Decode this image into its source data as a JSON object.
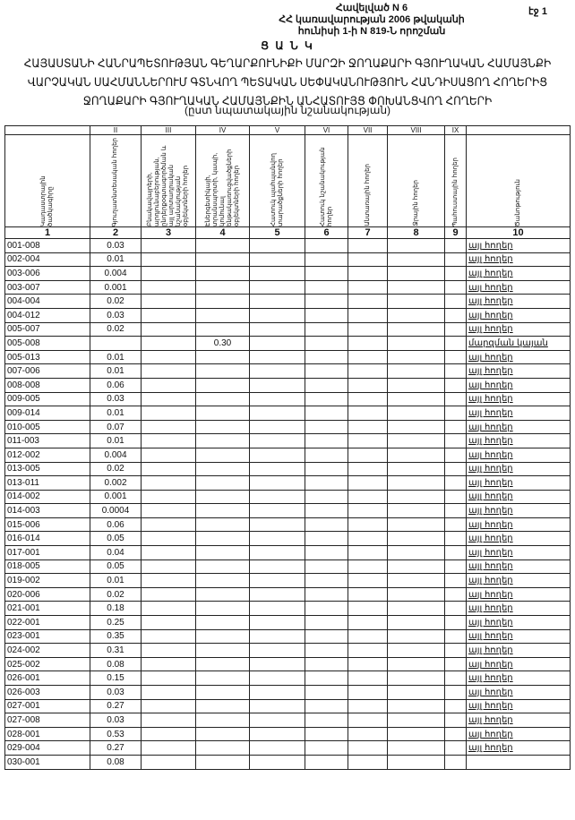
{
  "header": {
    "appendix": "Հավելված N 6",
    "line2": "ՀՀ կառավարության 2006 թվականի",
    "line3": "հունիսի 1-ի N 819-Ն որոշման",
    "page": "էջ 1"
  },
  "list_label": "Ց Ա Ն Կ",
  "title_lines": [
    "ՀԱՅԱՍՏԱՆԻ ՀԱՆՐԱՊԵՏՈՒԹՅԱՆ ԳԵՂԱՐՔՈՒՆԻՔԻ ՄԱՐԶԻ ՋՈՂԱՔԱՐԻ ԳՅՈՒՂԱԿԱՆ ՀԱՄԱՅՆՔԻ",
    "ՎԱՐՉԱԿԱՆ ՍԱՀՄԱՆՆԵՐՈՒՄ ԳՏՆՎՈՂ ՊԵՏԱԿԱՆ ՍԵՓԱԿԱՆՈՒԹՅՈՒՆ ՀԱՆԴԻՍԱՑՈՂ ՀՈՂԵՐԻՑ",
    "ՋՈՂԱՔԱՐԻ ԳՅՈՒՂԱԿԱՆ ՀԱՄԱՅՆՔԻՆ ԱՆՀԱՏՈՒՅՑ ՓՈԽԱՆՑՎՈՂ ՀՈՂԵՐԻ"
  ],
  "subtitle": "(ըստ նպատակային նշանակության)",
  "table": {
    "roman": [
      "",
      "II",
      "III",
      "IV",
      "V",
      "VI",
      "VII",
      "VIII",
      "IX",
      ""
    ],
    "headers": [
      "Կադաստրային ծածկագիրը",
      "Գյուղատնտեսական հողեր",
      "Բնակավայրերի, արդյունաբերության, ընդերքօգտագործման և այլ արտադրական նշանակության օբյեկտների հողեր",
      "Էներգետիկայի, տրանսպորտի, կապի, կոմունալ ենթակառուցվածքների օբյեկտների հողեր",
      "Հատուկ պահպանվող տարածքների հողեր",
      "Հատուկ նշանակության հողեր",
      "Անտառային հողեր",
      "Ջրային հողեր",
      "Պահուստային հողեր",
      "Ծանոթություն"
    ],
    "numbers": [
      "1",
      "2",
      "3",
      "4",
      "5",
      "6",
      "7",
      "8",
      "9",
      "10"
    ],
    "rows": [
      {
        "code": "001-008",
        "agri": "0.03",
        "col4": "",
        "note": "այլ հողեր"
      },
      {
        "code": "002-004",
        "agri": "0.01",
        "col4": "",
        "note": "այլ հողեր"
      },
      {
        "code": "003-006",
        "agri": "0.004",
        "col4": "",
        "note": "այլ հողեր"
      },
      {
        "code": "003-007",
        "agri": "0.001",
        "col4": "",
        "note": "այլ հողեր"
      },
      {
        "code": "004-004",
        "agri": "0.02",
        "col4": "",
        "note": "այլ հողեր"
      },
      {
        "code": "004-012",
        "agri": "0.03",
        "col4": "",
        "note": "այլ հողեր"
      },
      {
        "code": "005-007",
        "agri": "0.02",
        "col4": "",
        "note": "այլ հողեր"
      },
      {
        "code": "005-008",
        "agri": "",
        "col4": "0.30",
        "note": "մարզման կայան"
      },
      {
        "code": "005-013",
        "agri": "0.01",
        "col4": "",
        "note": "այլ հողեր"
      },
      {
        "code": "007-006",
        "agri": "0.01",
        "col4": "",
        "note": "այլ հողեր"
      },
      {
        "code": "008-008",
        "agri": "0.06",
        "col4": "",
        "note": "այլ հողեր"
      },
      {
        "code": "009-005",
        "agri": "0.03",
        "col4": "",
        "note": "այլ հողեր"
      },
      {
        "code": "009-014",
        "agri": "0.01",
        "col4": "",
        "note": "այլ հողեր"
      },
      {
        "code": "010-005",
        "agri": "0.07",
        "col4": "",
        "note": "այլ հողեր"
      },
      {
        "code": "011-003",
        "agri": "0.01",
        "col4": "",
        "note": "այլ հողեր"
      },
      {
        "code": "012-002",
        "agri": "0.004",
        "col4": "",
        "note": "այլ հողեր"
      },
      {
        "code": "013-005",
        "agri": "0.02",
        "col4": "",
        "note": "այլ հողեր"
      },
      {
        "code": "013-011",
        "agri": "0.002",
        "col4": "",
        "note": "այլ հողեր"
      },
      {
        "code": "014-002",
        "agri": "0.001",
        "col4": "",
        "note": "այլ հողեր"
      },
      {
        "code": "014-003",
        "agri": "0.0004",
        "col4": "",
        "note": "այլ հողեր"
      },
      {
        "code": "015-006",
        "agri": "0.06",
        "col4": "",
        "note": "այլ հողեր"
      },
      {
        "code": "016-014",
        "agri": "0.05",
        "col4": "",
        "note": "այլ հողեր"
      },
      {
        "code": "017-001",
        "agri": "0.04",
        "col4": "",
        "note": "այլ հողեր"
      },
      {
        "code": "018-005",
        "agri": "0.05",
        "col4": "",
        "note": "այլ հողեր"
      },
      {
        "code": "019-002",
        "agri": "0.01",
        "col4": "",
        "note": "այլ հողեր"
      },
      {
        "code": "020-006",
        "agri": "0.02",
        "col4": "",
        "note": "այլ հողեր"
      },
      {
        "code": "021-001",
        "agri": "0.18",
        "col4": "",
        "note": "այլ հողեր"
      },
      {
        "code": "022-001",
        "agri": "0.25",
        "col4": "",
        "note": "այլ հողեր"
      },
      {
        "code": "023-001",
        "agri": "0.35",
        "col4": "",
        "note": "այլ հողեր"
      },
      {
        "code": "024-002",
        "agri": "0.31",
        "col4": "",
        "note": "այլ հողեր"
      },
      {
        "code": "025-002",
        "agri": "0.08",
        "col4": "",
        "note": "այլ հողեր"
      },
      {
        "code": "026-001",
        "agri": "0.15",
        "col4": "",
        "note": "այլ հողեր"
      },
      {
        "code": "026-003",
        "agri": "0.03",
        "col4": "",
        "note": "այլ հողեր"
      },
      {
        "code": "027-001",
        "agri": "0.27",
        "col4": "",
        "note": "այլ հողեր"
      },
      {
        "code": "027-008",
        "agri": "0.03",
        "col4": "",
        "note": "այլ հողեր"
      },
      {
        "code": "028-001",
        "agri": "0.53",
        "col4": "",
        "note": "այլ հողեր"
      },
      {
        "code": "029-004",
        "agri": "0.27",
        "col4": "",
        "note": "այլ հողեր"
      },
      {
        "code": "030-001",
        "agri": "0.08",
        "col4": "",
        "note": ""
      }
    ]
  }
}
